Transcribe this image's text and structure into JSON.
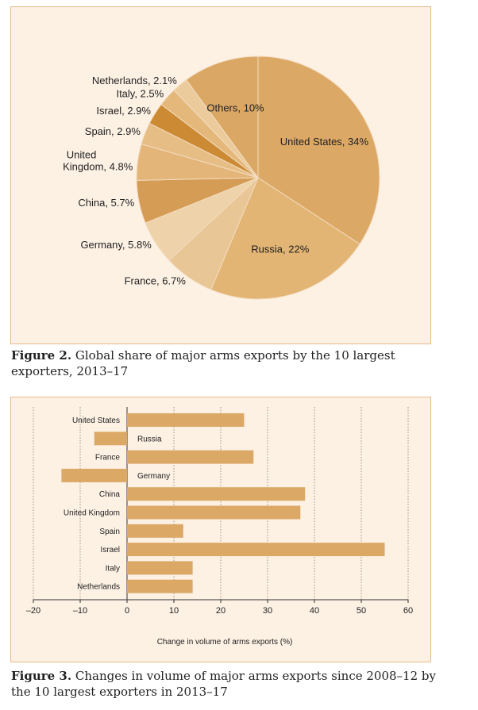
{
  "figure2": {
    "caption_label": "Figure 2.",
    "caption_text": "Global share of major arms exports by the 10 largest exporters, 2013–17"
  },
  "figure3": {
    "caption_label": "Figure 3.",
    "caption_text": "Changes in volume of major arms exports since 2008–12 by the 10 largest exporters in 2013–17"
  },
  "chart_data": [
    {
      "type": "pie",
      "title": "Global share of major arms exports by the 10 largest exporters, 2013–17",
      "unit": "%",
      "slices": [
        {
          "label": "United States, 34%",
          "name": "United States",
          "value": 34,
          "color": "#dca866"
        },
        {
          "label": "Russia, 22%",
          "name": "Russia",
          "value": 22,
          "color": "#e3b575"
        },
        {
          "label": "France, 6.7%",
          "name": "France",
          "value": 6.7,
          "color": "#e9c695"
        },
        {
          "label": "Germany, 5.8%",
          "name": "Germany",
          "value": 5.8,
          "color": "#eed2a9"
        },
        {
          "label": "China, 5.7%",
          "name": "China",
          "value": 5.7,
          "color": "#d59c55"
        },
        {
          "label": "United Kingdom, 4.8%",
          "name": "United Kingdom",
          "value": 4.8,
          "color": "#e4b579"
        },
        {
          "label": "Spain, 2.9%",
          "name": "Spain",
          "value": 2.9,
          "color": "#e6bd85"
        },
        {
          "label": "Israel, 2.9%",
          "name": "Israel",
          "value": 2.9,
          "color": "#cb8a33"
        },
        {
          "label": "Italy, 2.5%",
          "name": "Italy",
          "value": 2.5,
          "color": "#e4b87b"
        },
        {
          "label": "Netherlands, 2.1%",
          "name": "Netherlands",
          "value": 2.1,
          "color": "#ebcb9c"
        },
        {
          "label": "Others, 10%",
          "name": "Others",
          "value": 10,
          "color": "#dba764"
        }
      ],
      "label_lines": {
        "United Kingdom": [
          "United",
          "Kingdom, 4.8%"
        ]
      }
    },
    {
      "type": "bar",
      "orientation": "horizontal",
      "title": "Changes in volume of major arms exports since 2008–12 by the 10 largest exporters in 2013–17",
      "xlabel": "Change in volume of arms exports (%)",
      "xlim": [
        -20,
        60
      ],
      "xticks": [
        -20,
        -10,
        0,
        10,
        20,
        30,
        40,
        50,
        60
      ],
      "xtick_labels": [
        "–20",
        "–10",
        "0",
        "10",
        "20",
        "30",
        "40",
        "50",
        "60"
      ],
      "grid": "vertical dotted",
      "bar_color": "#dca866",
      "categories": [
        "United States",
        "Russia",
        "France",
        "Germany",
        "China",
        "United Kingdom",
        "Spain",
        "Israel",
        "Italy",
        "Netherlands"
      ],
      "values": [
        25,
        -7,
        27,
        -14,
        38,
        37,
        12,
        55,
        14,
        14
      ]
    }
  ]
}
